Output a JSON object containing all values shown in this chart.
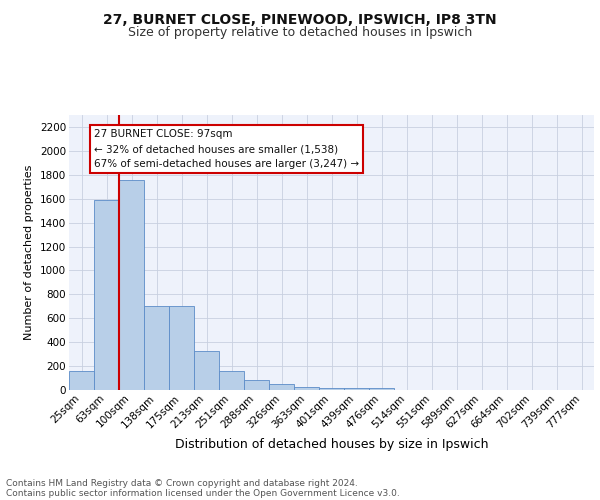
{
  "title1": "27, BURNET CLOSE, PINEWOOD, IPSWICH, IP8 3TN",
  "title2": "Size of property relative to detached houses in Ipswich",
  "xlabel": "Distribution of detached houses by size in Ipswich",
  "ylabel": "Number of detached properties",
  "categories": [
    "25sqm",
    "63sqm",
    "100sqm",
    "138sqm",
    "175sqm",
    "213sqm",
    "251sqm",
    "288sqm",
    "326sqm",
    "363sqm",
    "401sqm",
    "439sqm",
    "476sqm",
    "514sqm",
    "551sqm",
    "589sqm",
    "627sqm",
    "664sqm",
    "702sqm",
    "739sqm",
    "777sqm"
  ],
  "values": [
    160,
    1590,
    1760,
    705,
    705,
    325,
    155,
    85,
    50,
    28,
    20,
    18,
    18,
    0,
    0,
    0,
    0,
    0,
    0,
    0,
    0
  ],
  "bar_color": "#b8cfe8",
  "bar_edge_color": "#5b8cc8",
  "redline_index": 2,
  "redline_color": "#cc0000",
  "annotation_text": "27 BURNET CLOSE: 97sqm\n← 32% of detached houses are smaller (1,538)\n67% of semi-detached houses are larger (3,247) →",
  "annotation_box_color": "#ffffff",
  "annotation_box_edge": "#cc0000",
  "ylim": [
    0,
    2300
  ],
  "yticks": [
    0,
    200,
    400,
    600,
    800,
    1000,
    1200,
    1400,
    1600,
    1800,
    2000,
    2200
  ],
  "footnote1": "Contains HM Land Registry data © Crown copyright and database right 2024.",
  "footnote2": "Contains public sector information licensed under the Open Government Licence v3.0.",
  "bg_color": "#eef2fb",
  "title1_fontsize": 10,
  "title2_fontsize": 9,
  "xlabel_fontsize": 9,
  "ylabel_fontsize": 8,
  "tick_fontsize": 7.5,
  "footnote_fontsize": 6.5,
  "annot_fontsize": 7.5
}
